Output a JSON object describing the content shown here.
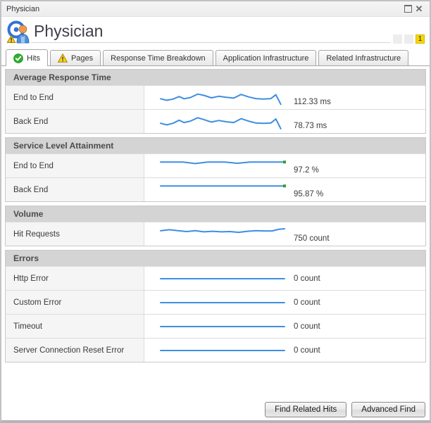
{
  "window": {
    "title": "Physician",
    "controls": {
      "maximize": "maximize",
      "close": "close"
    }
  },
  "header": {
    "title": "Physician",
    "severity_boxes": [
      {
        "label": "",
        "alert": false
      },
      {
        "label": "",
        "alert": false
      },
      {
        "label": "1",
        "alert": true
      }
    ]
  },
  "tabs": [
    {
      "label": "Hits",
      "icon": "status-ok",
      "active": true
    },
    {
      "label": "Pages",
      "icon": "status-warning",
      "active": false
    },
    {
      "label": "Response Time Breakdown",
      "icon": "",
      "active": false
    },
    {
      "label": "Application Infrastructure",
      "icon": "",
      "active": false
    },
    {
      "label": "Related Infrastructure",
      "icon": "",
      "active": false
    }
  ],
  "colors": {
    "sparkline": "#3e8ee3",
    "sla_dot": "#2ea12e",
    "alert_yellow": "#f6d500"
  },
  "sections": [
    {
      "title": "Average Response Time",
      "rows": [
        {
          "label": "End to End",
          "value": "112.33 ms",
          "type": "line-sparkline",
          "end_dot": false,
          "points": [
            [
              0,
              0.56
            ],
            [
              0.05,
              0.66
            ],
            [
              0.1,
              0.58
            ],
            [
              0.15,
              0.42
            ],
            [
              0.19,
              0.56
            ],
            [
              0.24,
              0.48
            ],
            [
              0.3,
              0.26
            ],
            [
              0.35,
              0.34
            ],
            [
              0.41,
              0.5
            ],
            [
              0.47,
              0.4
            ],
            [
              0.53,
              0.47
            ],
            [
              0.59,
              0.52
            ],
            [
              0.65,
              0.28
            ],
            [
              0.71,
              0.44
            ],
            [
              0.77,
              0.55
            ],
            [
              0.83,
              0.58
            ],
            [
              0.89,
              0.55
            ],
            [
              0.93,
              0.3
            ],
            [
              0.97,
              0.92
            ]
          ]
        },
        {
          "label": "Back End",
          "value": "78.73 ms",
          "type": "line-sparkline",
          "end_dot": false,
          "points": [
            [
              0,
              0.6
            ],
            [
              0.05,
              0.7
            ],
            [
              0.1,
              0.6
            ],
            [
              0.15,
              0.4
            ],
            [
              0.19,
              0.55
            ],
            [
              0.24,
              0.46
            ],
            [
              0.3,
              0.24
            ],
            [
              0.35,
              0.36
            ],
            [
              0.41,
              0.52
            ],
            [
              0.47,
              0.42
            ],
            [
              0.53,
              0.5
            ],
            [
              0.59,
              0.55
            ],
            [
              0.65,
              0.3
            ],
            [
              0.71,
              0.46
            ],
            [
              0.77,
              0.58
            ],
            [
              0.83,
              0.6
            ],
            [
              0.89,
              0.58
            ],
            [
              0.93,
              0.32
            ],
            [
              0.97,
              0.95
            ]
          ]
        }
      ]
    },
    {
      "title": "Service Level Attainment",
      "rows": [
        {
          "label": "End to End",
          "value": "97.2 %",
          "type": "flat-sparkline-with-dot",
          "end_dot": true,
          "points": [
            [
              0,
              0.42
            ],
            [
              0.18,
              0.42
            ],
            [
              0.28,
              0.52
            ],
            [
              0.38,
              0.42
            ],
            [
              0.52,
              0.42
            ],
            [
              0.62,
              0.5
            ],
            [
              0.72,
              0.42
            ],
            [
              1,
              0.42
            ]
          ]
        },
        {
          "label": "Back End",
          "value": "95.87 %",
          "type": "flat-sparkline-with-dot",
          "end_dot": true,
          "points": [
            [
              0,
              0.42
            ],
            [
              1,
              0.42
            ]
          ]
        }
      ]
    },
    {
      "title": "Volume",
      "rows": [
        {
          "label": "Hit Requests",
          "value": "750 count",
          "type": "line-sparkline",
          "end_dot": false,
          "points": [
            [
              0,
              0.45
            ],
            [
              0.07,
              0.38
            ],
            [
              0.14,
              0.44
            ],
            [
              0.21,
              0.5
            ],
            [
              0.28,
              0.44
            ],
            [
              0.35,
              0.52
            ],
            [
              0.42,
              0.48
            ],
            [
              0.49,
              0.52
            ],
            [
              0.56,
              0.5
            ],
            [
              0.63,
              0.55
            ],
            [
              0.7,
              0.48
            ],
            [
              0.77,
              0.44
            ],
            [
              0.84,
              0.46
            ],
            [
              0.9,
              0.46
            ],
            [
              0.95,
              0.36
            ],
            [
              1,
              0.32
            ]
          ]
        }
      ]
    },
    {
      "title": "Errors",
      "rows": [
        {
          "label": "Http Error",
          "value": "0 count",
          "type": "flat-line",
          "end_dot": false,
          "points": [
            [
              0,
              0.5
            ],
            [
              1,
              0.5
            ]
          ]
        },
        {
          "label": "Custom Error",
          "value": "0 count",
          "type": "flat-line",
          "end_dot": false,
          "points": [
            [
              0,
              0.5
            ],
            [
              1,
              0.5
            ]
          ]
        },
        {
          "label": "Timeout",
          "value": "0 count",
          "type": "flat-line",
          "end_dot": false,
          "points": [
            [
              0,
              0.5
            ],
            [
              1,
              0.5
            ]
          ]
        },
        {
          "label": "Server Connection Reset Error",
          "value": "0 count",
          "type": "flat-line",
          "end_dot": false,
          "points": [
            [
              0,
              0.5
            ],
            [
              1,
              0.5
            ]
          ]
        }
      ]
    }
  ],
  "footer": {
    "find_related_hits": "Find Related Hits",
    "advanced_find": "Advanced Find"
  }
}
